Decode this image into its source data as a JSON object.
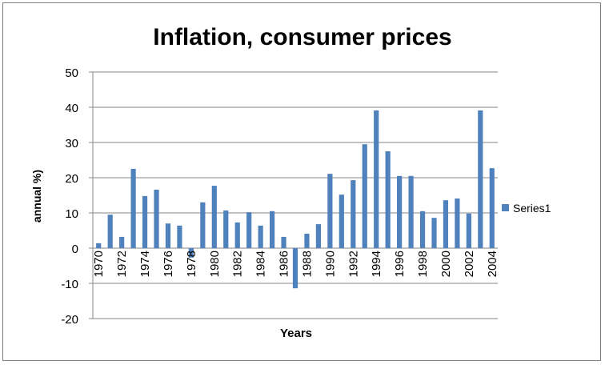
{
  "chart_data": {
    "type": "bar",
    "title": "Inflation, consumer prices",
    "xlabel": "Years",
    "ylabel": "annual %)",
    "ylim": [
      -20,
      50
    ],
    "yticks": [
      -20,
      -10,
      0,
      10,
      20,
      30,
      40,
      50
    ],
    "grid": true,
    "legend": {
      "position": "right",
      "entries": [
        "Series1"
      ]
    },
    "bar_color": "#4f81bd",
    "categories": [
      "1970",
      "1971",
      "1972",
      "1973",
      "1974",
      "1975",
      "1976",
      "1977",
      "1978",
      "1979",
      "1980",
      "1981",
      "1982",
      "1983",
      "1984",
      "1985",
      "1986",
      "1987",
      "1988",
      "1989",
      "1990",
      "1991",
      "1992",
      "1993",
      "1994",
      "1995",
      "1996",
      "1997",
      "1998",
      "1999",
      "2000",
      "2001",
      "2002",
      "2003",
      "2004"
    ],
    "series": [
      {
        "name": "Series1",
        "values": [
          1.4,
          9.5,
          3.2,
          22.5,
          14.8,
          16.6,
          7.0,
          6.4,
          -2.7,
          13.0,
          17.7,
          10.7,
          7.3,
          10.2,
          6.4,
          10.5,
          3.2,
          -11.4,
          4.1,
          6.8,
          21.1,
          15.2,
          19.3,
          29.5,
          39.1,
          27.5,
          20.5,
          20.5,
          10.5,
          8.6,
          13.6,
          14.1,
          9.8,
          39.1,
          22.7
        ]
      }
    ]
  }
}
